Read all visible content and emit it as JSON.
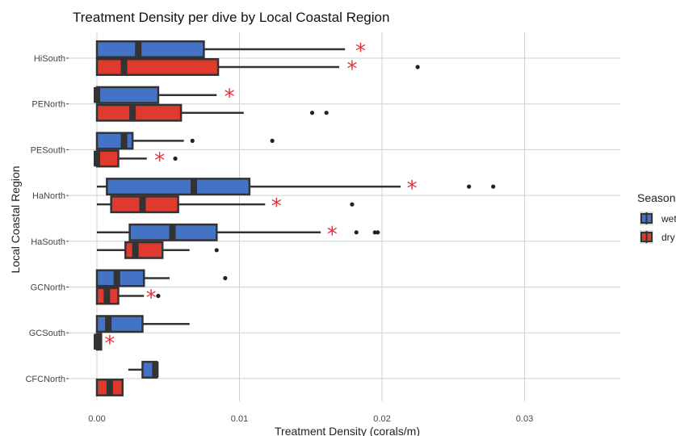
{
  "chart_data": {
    "type": "boxplot",
    "title": "Treatment Density per dive by Local Coastal Region",
    "xlabel": "Treatment Density (corals/m)",
    "ylabel": "Local Coastal Region",
    "xlim": [
      -0.0006,
      0.0366
    ],
    "x_ticks": [
      0.0,
      0.01,
      0.02,
      0.03
    ],
    "x_tick_labels": [
      "0.00",
      "0.01",
      "0.02",
      "0.03"
    ],
    "orientation": "horizontal",
    "grid": true,
    "legend": {
      "title": "Season",
      "position": "right",
      "entries": [
        {
          "label": "wet",
          "color": "#4472c4"
        },
        {
          "label": "dry",
          "color": "#e03a2e"
        }
      ]
    },
    "significance_marker": "*",
    "significance_color": "#e8313a",
    "categories": [
      "HiSouth",
      "PENorth",
      "PESouth",
      "HaNorth",
      "HaSouth",
      "GCNorth",
      "GCSouth",
      "CFCNorth"
    ],
    "series": [
      {
        "name": "wet",
        "color": "#4472c4",
        "boxes": [
          {
            "category": "HiSouth",
            "whisker_low": 0.0,
            "q1": 0.0,
            "median": 0.0029,
            "q3": 0.0075,
            "whisker_high": 0.0174,
            "outliers": [],
            "marker_x": 0.0185
          },
          {
            "category": "PENorth",
            "whisker_low": 0.0,
            "q1": 0.0,
            "median": 0.0,
            "q3": 0.0043,
            "whisker_high": 0.0084,
            "outliers": [],
            "marker_x": 0.0093
          },
          {
            "category": "PESouth",
            "whisker_low": 0.0,
            "q1": 0.0,
            "median": 0.0019,
            "q3": 0.0025,
            "whisker_high": 0.0061,
            "outliers": [
              0.0067,
              0.0123
            ],
            "marker_x": null
          },
          {
            "category": "HaNorth",
            "whisker_low": 0.0,
            "q1": 0.0007,
            "median": 0.0068,
            "q3": 0.0107,
            "whisker_high": 0.0213,
            "outliers": [
              0.0261,
              0.0278
            ],
            "marker_x": 0.0221
          },
          {
            "category": "HaSouth",
            "whisker_low": 0.0,
            "q1": 0.0023,
            "median": 0.0053,
            "q3": 0.0084,
            "whisker_high": 0.0157,
            "outliers": [
              0.0182,
              0.0195,
              0.0197
            ],
            "marker_x": 0.0165
          },
          {
            "category": "GCNorth",
            "whisker_low": 0.0,
            "q1": 0.0,
            "median": 0.0014,
            "q3": 0.0033,
            "whisker_high": 0.0051,
            "outliers": [
              0.009
            ],
            "marker_x": null
          },
          {
            "category": "GCSouth",
            "whisker_low": 0.0,
            "q1": 0.0,
            "median": 0.0008,
            "q3": 0.0032,
            "whisker_high": 0.0065,
            "outliers": [],
            "marker_x": null
          },
          {
            "category": "CFCNorth",
            "whisker_low": 0.0022,
            "q1": 0.0032,
            "median": 0.0041,
            "q3": 0.0042,
            "whisker_high": 0.0042,
            "outliers": [],
            "marker_x": null
          }
        ]
      },
      {
        "name": "dry",
        "color": "#e03a2e",
        "boxes": [
          {
            "category": "HiSouth",
            "whisker_low": 0.0,
            "q1": 0.0,
            "median": 0.0019,
            "q3": 0.0085,
            "whisker_high": 0.017,
            "outliers": [
              0.0225
            ],
            "marker_x": 0.0179
          },
          {
            "category": "PENorth",
            "whisker_low": 0.0,
            "q1": 0.0,
            "median": 0.0025,
            "q3": 0.0059,
            "whisker_high": 0.0103,
            "outliers": [
              0.0151,
              0.0161
            ],
            "marker_x": null
          },
          {
            "category": "PESouth",
            "whisker_low": 0.0,
            "q1": 0.0,
            "median": 0.0,
            "q3": 0.0015,
            "whisker_high": 0.0035,
            "outliers": [
              0.0055
            ],
            "marker_x": 0.0044
          },
          {
            "category": "HaNorth",
            "whisker_low": 0.0,
            "q1": 0.001,
            "median": 0.0032,
            "q3": 0.0057,
            "whisker_high": 0.0118,
            "outliers": [
              0.0179
            ],
            "marker_x": 0.0126
          },
          {
            "category": "HaSouth",
            "whisker_low": 0.0,
            "q1": 0.002,
            "median": 0.0027,
            "q3": 0.0046,
            "whisker_high": 0.0065,
            "outliers": [
              0.0084
            ],
            "marker_x": null
          },
          {
            "category": "GCNorth",
            "whisker_low": 0.0,
            "q1": 0.0,
            "median": 0.0007,
            "q3": 0.0015,
            "whisker_high": 0.0033,
            "outliers": [
              0.0043
            ],
            "marker_x": 0.0038
          },
          {
            "category": "GCSouth",
            "whisker_low": 0.0,
            "q1": 0.0,
            "median": 0.0,
            "q3": 0.0003,
            "whisker_high": 0.0003,
            "outliers": [],
            "marker_x": 0.0009
          },
          {
            "category": "CFCNorth",
            "whisker_low": 0.0,
            "q1": 0.0,
            "median": 0.0009,
            "q3": 0.0018,
            "whisker_high": 0.0018,
            "outliers": [],
            "marker_x": null
          }
        ]
      }
    ]
  }
}
